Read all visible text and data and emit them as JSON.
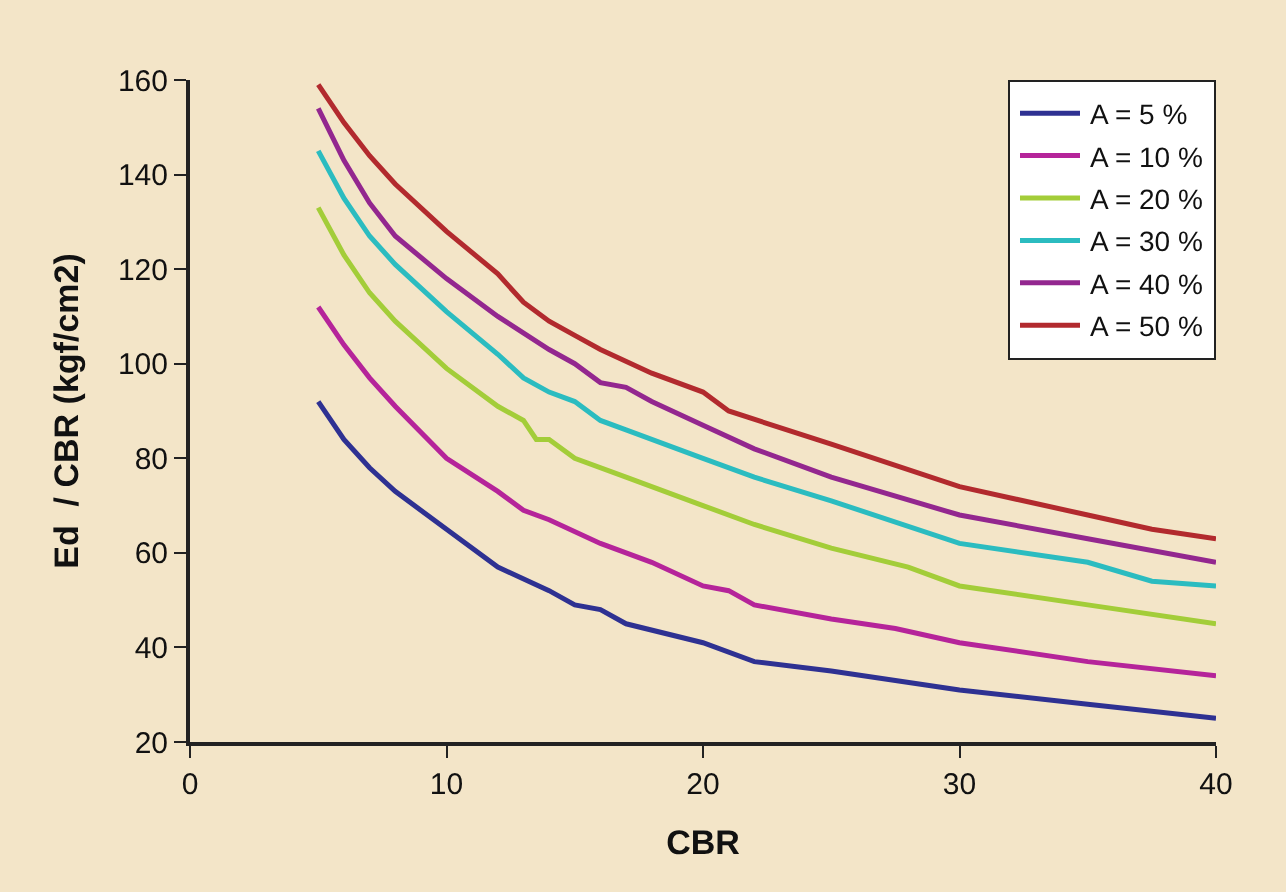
{
  "chart_data": {
    "type": "line",
    "xlabel": "CBR",
    "ylabel": "Ed  / CBR (kgf/cm2)",
    "xlim": [
      0,
      40
    ],
    "xticks": [
      0,
      10,
      20,
      30,
      40
    ],
    "ylim": [
      20,
      160
    ],
    "yticks": [
      20,
      40,
      60,
      80,
      100,
      120,
      140,
      160
    ],
    "grid": false,
    "legend": "top right",
    "marker": "none",
    "line_style": "solid",
    "series": [
      {
        "name": "A = 5 %",
        "color": "#2e3192",
        "x": [
          5,
          6,
          7,
          8,
          10,
          12,
          14,
          15,
          16,
          17,
          20,
          22,
          25,
          30,
          35,
          40
        ],
        "values": [
          92,
          84,
          78,
          73,
          65,
          57,
          52,
          49,
          48,
          45,
          41,
          37,
          35,
          31,
          28,
          25
        ]
      },
      {
        "name": "A = 10 %",
        "color": "#b5249a",
        "x": [
          5,
          6,
          7,
          8,
          10,
          12,
          13,
          14,
          16,
          18,
          20,
          21,
          22,
          25,
          27.5,
          30,
          35,
          40
        ],
        "values": [
          112,
          104,
          97,
          91,
          80,
          73,
          69,
          67,
          62,
          58,
          53,
          52,
          49,
          46,
          44,
          41,
          37,
          34
        ]
      },
      {
        "name": "A = 20 %",
        "color": "#a3cd39",
        "x": [
          5,
          6,
          7,
          8,
          10,
          12,
          13,
          13.5,
          14,
          15,
          17,
          20,
          22,
          25,
          28,
          30,
          35,
          40
        ],
        "values": [
          133,
          123,
          115,
          109,
          99,
          91,
          88,
          84,
          84,
          80,
          76,
          70,
          66,
          61,
          57,
          53,
          49,
          45
        ]
      },
      {
        "name": "A = 30 %",
        "color": "#2bbcc0",
        "x": [
          5,
          6,
          7,
          8,
          10,
          12,
          13,
          14,
          15,
          16,
          17,
          20,
          22,
          25,
          30,
          35,
          37.5,
          40
        ],
        "values": [
          145,
          135,
          127,
          121,
          111,
          102,
          97,
          94,
          92,
          88,
          86,
          80,
          76,
          71,
          62,
          58,
          54,
          53
        ]
      },
      {
        "name": "A = 40 %",
        "color": "#93278f",
        "x": [
          5,
          6,
          7,
          8,
          10,
          12,
          14,
          15,
          16,
          17,
          18,
          20,
          22,
          25,
          30,
          35,
          40
        ],
        "values": [
          154,
          143,
          134,
          127,
          118,
          110,
          103,
          100,
          96,
          95,
          92,
          87,
          82,
          76,
          68,
          63,
          58
        ]
      },
      {
        "name": "A = 50 %",
        "color": "#b22a2e",
        "x": [
          5,
          6,
          7,
          8,
          10,
          12,
          13,
          14,
          15,
          16,
          18,
          20,
          21,
          25,
          30,
          35,
          37.5,
          40
        ],
        "values": [
          159,
          151,
          144,
          138,
          128,
          119,
          113,
          109,
          106,
          103,
          98,
          94,
          90,
          83,
          74,
          68,
          65,
          63
        ]
      }
    ]
  }
}
